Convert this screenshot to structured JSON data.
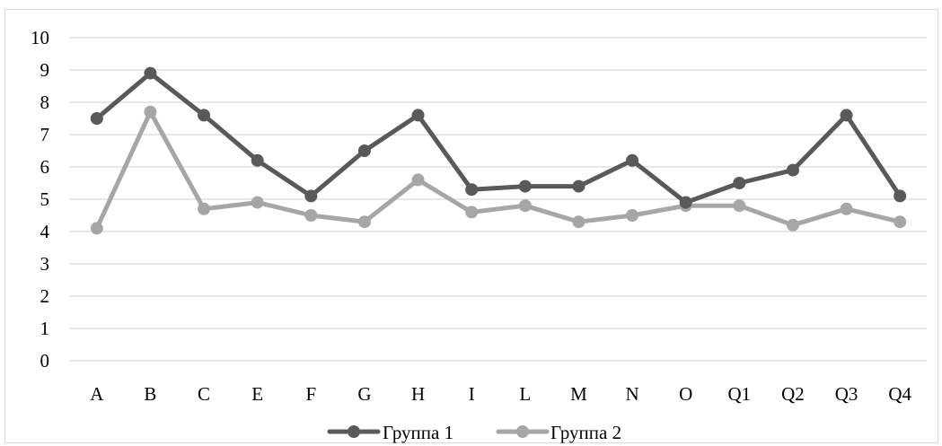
{
  "chart_data": {
    "type": "line",
    "title": "",
    "xlabel": "",
    "ylabel": "",
    "ylim": [
      0,
      10
    ],
    "yticks": [
      0,
      1,
      2,
      3,
      4,
      5,
      6,
      7,
      8,
      9,
      10
    ],
    "grid": true,
    "legend_position": "bottom",
    "categories": [
      "A",
      "B",
      "C",
      "E",
      "F",
      "G",
      "H",
      "I",
      "L",
      "M",
      "N",
      "O",
      "Q1",
      "Q2",
      "Q3",
      "Q4"
    ],
    "series": [
      {
        "name": "Группа 1",
        "color": "#595959",
        "values": [
          7.5,
          8.9,
          7.6,
          6.2,
          5.1,
          6.5,
          7.6,
          5.3,
          5.4,
          5.4,
          6.2,
          4.9,
          5.5,
          5.9,
          7.6,
          5.1
        ]
      },
      {
        "name": "Группа 2",
        "color": "#a6a6a6",
        "values": [
          4.1,
          7.7,
          4.7,
          4.9,
          4.5,
          4.3,
          5.6,
          4.6,
          4.8,
          4.3,
          4.5,
          4.8,
          4.8,
          4.2,
          4.7,
          4.3
        ]
      }
    ]
  }
}
